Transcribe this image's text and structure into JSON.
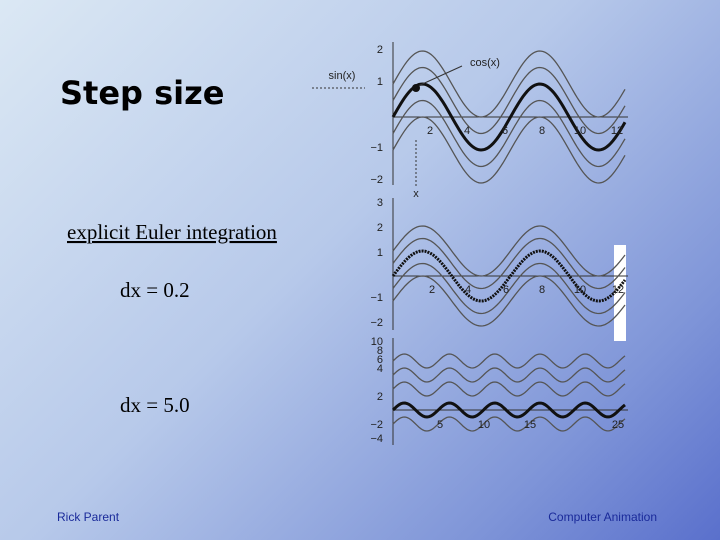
{
  "title": "Step size",
  "bullets": [
    "explicit Euler integration",
    "dx = 0.2",
    "dx = 5.0"
  ],
  "footer": {
    "left": "Rick Parent",
    "right": "Computer Animation"
  },
  "figures": [
    {
      "y_labels": [
        "2",
        "1",
        "−1",
        "−2"
      ],
      "x_labels": [
        "2",
        "4",
        "6",
        "8",
        "10",
        "12"
      ],
      "annotations": [
        "sin(x)",
        "cos(x)",
        "x"
      ]
    },
    {
      "y_labels": [
        "3",
        "2",
        "1",
        "−1",
        "−2"
      ],
      "x_labels": [
        "2",
        "4",
        "6",
        "8",
        "10",
        "12"
      ]
    },
    {
      "y_labels": [
        "10",
        "8",
        "6",
        "4",
        "2",
        "−2",
        "−4"
      ],
      "x_labels": [
        "5",
        "10",
        "15",
        "25"
      ]
    }
  ]
}
